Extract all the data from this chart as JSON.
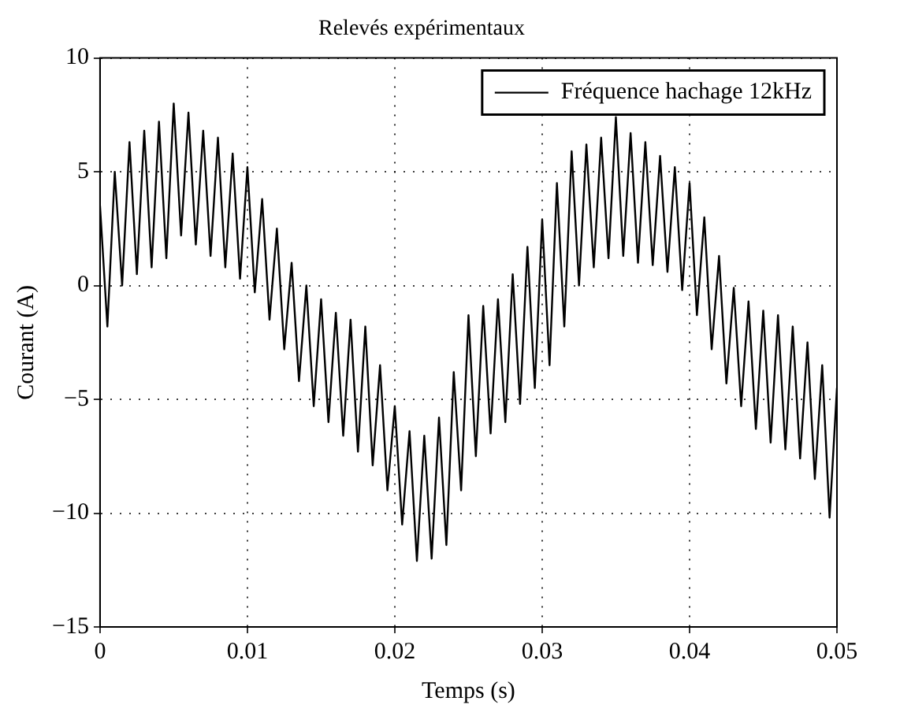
{
  "chart_data": {
    "type": "line",
    "title": "Relevés expérimentaux",
    "xlabel": "Temps (s)",
    "ylabel": "Courant (A)",
    "x": [
      0,
      0.0005,
      0.001,
      0.0015,
      0.002,
      0.0025,
      0.003,
      0.0035,
      0.004,
      0.0045,
      0.005,
      0.0055,
      0.006,
      0.0065,
      0.007,
      0.0075,
      0.008,
      0.0085,
      0.009,
      0.0095,
      0.01,
      0.0105,
      0.011,
      0.0115,
      0.012,
      0.0125,
      0.013,
      0.0135,
      0.014,
      0.0145,
      0.015,
      0.0155,
      0.016,
      0.0165,
      0.017,
      0.0175,
      0.018,
      0.0185,
      0.019,
      0.0195,
      0.02,
      0.0205,
      0.021,
      0.0215,
      0.022,
      0.0225,
      0.023,
      0.0235,
      0.024,
      0.0245,
      0.025,
      0.0255,
      0.026,
      0.0265,
      0.027,
      0.0275,
      0.028,
      0.0285,
      0.029,
      0.0295,
      0.03,
      0.0305,
      0.031,
      0.0315,
      0.032,
      0.0325,
      0.033,
      0.0335,
      0.034,
      0.0345,
      0.035,
      0.0355,
      0.036,
      0.0365,
      0.037,
      0.0375,
      0.038,
      0.0385,
      0.039,
      0.0395,
      0.04,
      0.0405,
      0.041,
      0.0415,
      0.042,
      0.0425,
      0.043,
      0.0435,
      0.044,
      0.0445,
      0.045,
      0.0455,
      0.046,
      0.0465,
      0.047,
      0.0475,
      0.048,
      0.0485,
      0.049,
      0.0495,
      0.05
    ],
    "series": [
      {
        "name": "Fréquence hachage 12kHz",
        "color": "#000000",
        "values": [
          3.5,
          -1.8,
          5.0,
          0.0,
          6.3,
          0.5,
          6.8,
          0.8,
          7.2,
          1.2,
          8.0,
          2.2,
          7.6,
          1.8,
          6.8,
          1.3,
          6.5,
          0.8,
          5.8,
          0.3,
          5.2,
          -0.3,
          3.8,
          -1.5,
          2.5,
          -2.8,
          1.0,
          -4.2,
          0.0,
          -5.3,
          -0.6,
          -6.0,
          -1.2,
          -6.6,
          -1.5,
          -7.3,
          -1.8,
          -7.9,
          -3.5,
          -9.0,
          -5.3,
          -10.5,
          -6.4,
          -12.1,
          -6.6,
          -12.0,
          -5.8,
          -11.4,
          -3.8,
          -9.0,
          -1.3,
          -7.5,
          -0.9,
          -6.5,
          -0.6,
          -6.0,
          0.5,
          -5.2,
          1.7,
          -4.5,
          2.9,
          -3.5,
          4.5,
          -1.8,
          5.9,
          0.0,
          6.2,
          0.8,
          6.5,
          1.2,
          7.4,
          1.3,
          6.7,
          1.0,
          6.3,
          0.9,
          5.7,
          0.6,
          5.2,
          -0.2,
          4.5,
          -1.3,
          3.0,
          -2.8,
          1.3,
          -4.3,
          -0.1,
          -5.3,
          -0.7,
          -6.3,
          -1.1,
          -6.9,
          -1.3,
          -7.2,
          -1.8,
          -7.6,
          -2.5,
          -8.5,
          -3.5,
          -10.2,
          -4.5
        ]
      }
    ],
    "xlim": [
      0,
      0.05
    ],
    "xticks": [
      0,
      0.01,
      0.02,
      0.03,
      0.04,
      0.05
    ],
    "ylim": [
      -15,
      10
    ],
    "yticks": [
      {
        "value": -15,
        "label": "−15"
      },
      {
        "value": -10,
        "label": "−10"
      },
      {
        "value": -5,
        "label": "−5"
      },
      0,
      5,
      10
    ],
    "grid": true,
    "legend": "top right",
    "marker": "none",
    "line_style": "solid"
  }
}
